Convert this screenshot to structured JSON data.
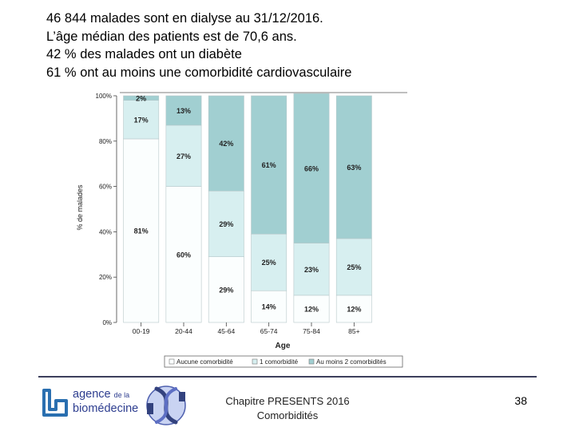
{
  "intro_lines": [
    "46 844 malades sont en dialyse au 31/12/2016.",
    "L’âge médian des patients est de 70,6 ans.",
    "42 % des malades ont un diabète",
    "61 % ont au moins une comorbidité cardiovasculaire"
  ],
  "chart_data": {
    "type": "bar",
    "stacked": true,
    "percent_stacked": true,
    "xlabel": "Age",
    "ylabel": "% de malades",
    "ylim": [
      0,
      100
    ],
    "y_ticks": [
      0,
      20,
      40,
      60,
      80,
      100
    ],
    "y_tick_labels": [
      "0%",
      "20%",
      "40%",
      "60%",
      "80%",
      "100%"
    ],
    "categories": [
      "00-19",
      "20-44",
      "45-64",
      "65-74",
      "75-84",
      "85+"
    ],
    "series": [
      {
        "name": "Aucune comorbidité",
        "color": "#fbfefe",
        "values": [
          81,
          60,
          29,
          14,
          12,
          12
        ]
      },
      {
        "name": "1 comorbidité",
        "color": "#d7eff0",
        "values": [
          17,
          27,
          29,
          25,
          23,
          25
        ]
      },
      {
        "name": "Au moins 2 comorbidités",
        "color": "#a1cfd1",
        "values": [
          2,
          13,
          42,
          61,
          66,
          63
        ]
      }
    ],
    "data_labels": [
      [
        "81%",
        "60%",
        "29%",
        "14%",
        "12%",
        "12%"
      ],
      [
        "17%",
        "27%",
        "29%",
        "25%",
        "23%",
        "25%"
      ],
      [
        "2%",
        "13%",
        "42%",
        "61%",
        "66%",
        "63%"
      ]
    ],
    "legend_position": "bottom",
    "grid": false
  },
  "logo": {
    "line1_a": "agence",
    "line1_b": "de la",
    "line2": "biomédecine"
  },
  "footer": {
    "chapter": "Chapitre PRESENTS 2016",
    "subtitle": "Comorbidités",
    "page_number": "38"
  }
}
